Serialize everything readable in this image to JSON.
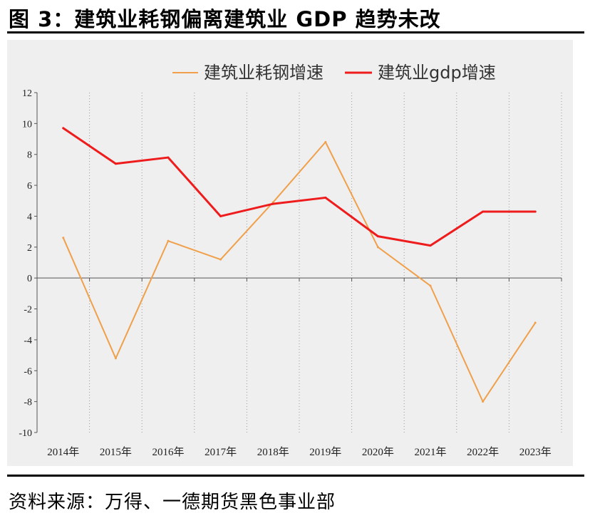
{
  "figure": {
    "title": "图 3：建筑业耗钢偏离建筑业 GDP 趋势未改",
    "source": "资料来源：万得、一德期货黑色事业部"
  },
  "chart_data": {
    "type": "line",
    "title": "",
    "xlabel": "",
    "ylabel": "",
    "categories": [
      "2014年",
      "2015年",
      "2016年",
      "2017年",
      "2018年",
      "2019年",
      "2020年",
      "2021年",
      "2022年",
      "2023年"
    ],
    "series": [
      {
        "name": "建筑业耗钢增速",
        "color": "#f0a04b",
        "values": [
          2.6,
          -5.2,
          2.4,
          1.2,
          4.9,
          8.8,
          2.0,
          -0.5,
          -8.0,
          -2.9
        ]
      },
      {
        "name": "建筑业gdp增速",
        "color": "#ee1c1c",
        "values": [
          9.7,
          7.4,
          7.8,
          4.0,
          4.8,
          5.2,
          2.7,
          2.1,
          4.3,
          4.3
        ]
      }
    ],
    "ylim": [
      -10,
      12
    ],
    "yticks": [
      12,
      10,
      8,
      6,
      4,
      2,
      0,
      -2,
      -4,
      -6,
      -8,
      -10
    ],
    "grid": "vertical dotted",
    "legend_position": "top"
  }
}
